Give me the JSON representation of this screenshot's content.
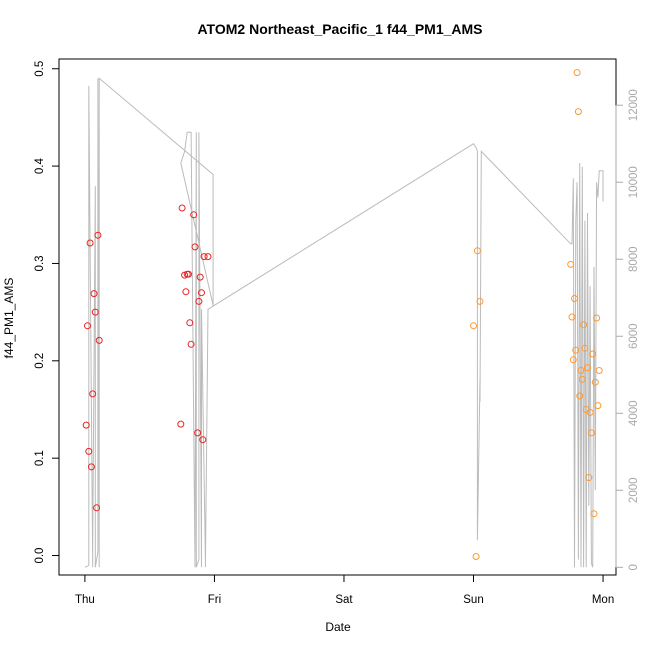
{
  "chart_data": {
    "type": "scatter",
    "title": "ATOM2 Northeast_Pacific_1 f44_PM1_AMS",
    "xlabel": "Date",
    "ylabel": "f44_PM1_AMS",
    "x_ticks": [
      "Thu",
      "Fri",
      "Sat",
      "Sun",
      "Mon"
    ],
    "x_units": "days since Thu 00:00",
    "xlim": [
      -0.2,
      4.1
    ],
    "ylim": [
      -0.02,
      0.51
    ],
    "y_ticks": [
      0.0,
      0.1,
      0.2,
      0.3,
      0.4,
      0.5
    ],
    "y_tick_labels": [
      "0.0",
      "0.1",
      "0.2",
      "0.3",
      "0.4",
      "0.5"
    ],
    "y2lim": [
      -200,
      13200
    ],
    "y2_ticks": [
      0,
      2000,
      4000,
      6000,
      8000,
      10000,
      12000
    ],
    "grid": false,
    "colors": {
      "red": "#ee2222",
      "orange": "#ff9933",
      "line": "#bbbbbb",
      "right_axis": "#aaaaaa"
    },
    "series": [
      {
        "color": "red",
        "x": [
          0.01,
          0.02,
          0.03,
          0.04,
          0.05,
          0.06,
          0.07,
          0.08,
          0.09,
          0.1,
          0.11,
          0.74,
          0.75,
          0.77,
          0.78,
          0.79,
          0.8,
          0.81,
          0.82,
          0.84,
          0.85,
          0.87,
          0.88,
          0.89,
          0.9,
          0.91,
          0.92,
          0.95
        ],
        "y": [
          0.134,
          0.236,
          0.107,
          0.321,
          0.091,
          0.166,
          0.269,
          0.25,
          0.049,
          0.329,
          0.221,
          0.135,
          0.357,
          0.288,
          0.271,
          0.289,
          0.289,
          0.239,
          0.217,
          0.35,
          0.317,
          0.126,
          0.261,
          0.286,
          0.27,
          0.119,
          0.307,
          0.307
        ]
      },
      {
        "color": "orange",
        "x": [
          3.0,
          3.02,
          3.03,
          3.05,
          3.75,
          3.76,
          3.77,
          3.78,
          3.79,
          3.8,
          3.81,
          3.82,
          3.83,
          3.84,
          3.85,
          3.86,
          3.87,
          3.88,
          3.89,
          3.9,
          3.91,
          3.92,
          3.93,
          3.94,
          3.95,
          3.96,
          3.97
        ],
        "y": [
          0.236,
          -0.001,
          0.313,
          0.261,
          0.299,
          0.245,
          0.201,
          0.264,
          0.211,
          0.496,
          0.456,
          0.164,
          0.19,
          0.181,
          0.237,
          0.213,
          0.15,
          0.193,
          0.08,
          0.147,
          0.126,
          0.207,
          0.043,
          0.178,
          0.244,
          0.154,
          0.19
        ]
      }
    ],
    "line_series": {
      "axis": "right",
      "color": "line",
      "x": [
        0.0,
        0.03,
        0.03,
        0.06,
        0.06,
        0.08,
        0.08,
        0.1,
        0.1,
        0.11,
        0.11,
        0.99,
        0.99,
        0.74,
        0.76,
        0.77,
        0.79,
        0.81,
        0.82,
        0.85,
        0.86,
        0.86,
        0.88,
        0.88,
        0.9,
        0.9,
        0.93,
        0.93,
        0.95,
        3.0,
        3.0,
        3.02,
        3.03,
        3.03,
        3.05,
        3.05,
        3.06,
        3.75,
        3.76,
        3.77,
        3.77,
        3.78,
        3.79,
        3.8,
        3.81,
        3.82,
        3.83,
        3.84,
        3.85,
        3.86,
        3.87,
        3.88,
        3.89,
        3.9,
        3.91,
        3.92,
        3.93,
        3.94,
        3.95,
        3.96,
        3.97,
        4.0,
        4.0
      ],
      "y": [
        0,
        50,
        12500,
        0,
        600,
        9900,
        0,
        400,
        12700,
        0,
        12700,
        10200,
        6800,
        10500,
        10700,
        10800,
        11300,
        11300,
        11300,
        0,
        11300,
        0,
        200,
        11300,
        0,
        6700,
        200,
        0,
        6700,
        11000,
        11000,
        10900,
        10800,
        700,
        4900,
        4300,
        10800,
        8400,
        8400,
        10100,
        10100,
        0,
        9000,
        10000,
        200,
        10500,
        0,
        10400,
        0,
        9000,
        0,
        9200,
        1600,
        7300,
        100,
        0,
        7800,
        2000,
        10000,
        9600,
        10300,
        10300,
        9500
      ]
    }
  }
}
